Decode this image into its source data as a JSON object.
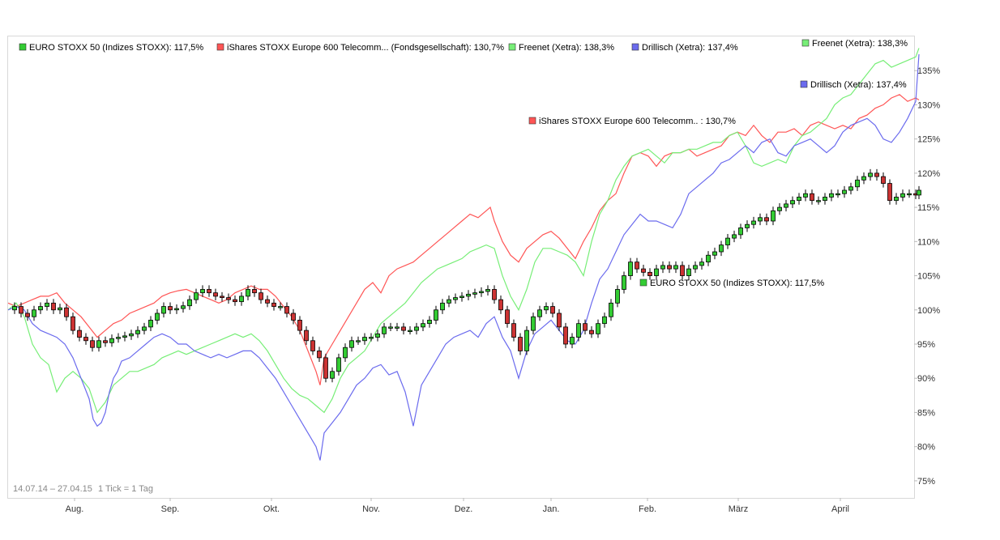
{
  "chart_data": {
    "type": "line",
    "date_range_label": "14.07.14 – 27.04.15",
    "tick_label": "1 Tick = 1 Tag",
    "x_axis_labels": [
      "Aug.",
      "Sep.",
      "Okt.",
      "Nov.",
      "Dez.",
      "Jan.",
      "Feb.",
      "März",
      "April"
    ],
    "y_axis_labels": [
      "135%",
      "130%",
      "125%",
      "120%",
      "115%",
      "110%",
      "105%",
      "100%",
      "95%",
      "90%",
      "85%",
      "80%",
      "75%"
    ],
    "y_ticks": [
      135,
      130,
      125,
      120,
      115,
      110,
      105,
      100,
      95,
      90,
      85,
      80,
      75
    ],
    "ylim": [
      72.5,
      140
    ],
    "grid": false,
    "legend_position": "top",
    "series": [
      {
        "name": "EURO STOXX 50 (Indizes STOXX)",
        "final_label": "117,5%",
        "legend_text": "EURO STOXX 50 (Indizes STOXX): 117,5%",
        "end_label": "EURO STOXX 50 (Indizes STOXX): 117,5%",
        "style": "candlestick",
        "color": "#33cc33",
        "down_color": "#cc3333",
        "x": [
          0,
          8,
          16,
          24,
          32,
          40,
          48,
          56,
          64,
          72,
          80,
          88,
          96,
          104,
          112,
          120,
          128,
          136,
          144,
          152,
          160,
          168,
          176,
          184,
          192,
          200,
          208,
          216,
          224,
          232,
          240,
          248,
          256,
          264,
          272,
          280,
          288,
          296,
          304,
          312,
          320,
          328,
          336,
          344,
          352,
          360,
          368,
          376,
          384,
          392,
          400,
          408,
          416,
          424,
          432,
          440,
          448,
          456,
          464,
          472,
          480,
          488,
          496,
          504,
          512,
          520,
          528,
          536,
          544,
          552,
          560,
          568,
          576,
          584,
          592,
          600,
          608,
          616,
          624,
          632,
          640,
          648,
          656,
          664,
          672,
          680,
          688,
          696,
          704,
          712,
          720,
          728,
          736,
          744,
          752,
          760,
          768,
          776,
          784,
          792,
          800,
          808,
          816,
          824,
          832,
          840,
          848,
          856,
          864,
          872,
          880,
          888,
          896,
          904,
          912,
          920,
          928,
          936,
          944,
          952,
          960,
          968,
          976,
          984,
          992,
          1000,
          1008,
          1016,
          1024,
          1032,
          1040,
          1048,
          1056,
          1064,
          1072,
          1080,
          1088,
          1096,
          1104,
          1112,
          1120,
          1124
        ],
        "y": [
          100,
          100.5,
          99.5,
          99,
          100,
          100.5,
          101,
          100,
          100.3,
          99,
          97,
          96,
          95.5,
          94.5,
          95.5,
          95.2,
          95.8,
          96,
          96.2,
          96.5,
          97,
          97.5,
          98.5,
          99.5,
          100.5,
          100,
          100.2,
          100.6,
          101.5,
          102.5,
          103,
          102.5,
          102,
          101.8,
          101.5,
          101.2,
          102,
          103,
          102.5,
          101.5,
          101,
          100.5,
          100.5,
          99.5,
          98.5,
          97,
          95.5,
          94,
          93,
          90,
          91,
          93,
          94.5,
          95.5,
          95.5,
          96,
          96,
          96.5,
          97.5,
          97.5,
          97.5,
          97,
          97,
          97.5,
          98,
          98.5,
          100,
          101,
          101.5,
          101.8,
          102,
          102.3,
          102.5,
          102.7,
          103,
          101.5,
          100,
          98,
          96,
          94,
          97,
          99,
          100,
          100.5,
          99.5,
          97.5,
          95,
          96,
          98,
          97,
          96.5,
          98,
          99,
          101,
          103,
          105,
          107,
          106,
          105.5,
          105,
          106,
          106.5,
          106,
          106.5,
          105,
          106,
          106.5,
          107,
          108,
          108.5,
          109.5,
          110.5,
          111,
          112,
          112.5,
          113,
          113.5,
          113,
          114.5,
          115,
          115.5,
          116,
          116.5,
          117,
          116,
          116,
          116.5,
          117,
          117,
          117.5,
          118,
          119,
          119.5,
          120,
          119.5,
          118.5,
          116,
          116.5,
          117,
          117,
          116.8,
          117.5
        ]
      },
      {
        "name": "iShares STOXX Europe 600 Telecomm... (Fondsgesellschaft)",
        "final_label": "130,7%",
        "legend_text": "iShares STOXX Europe 600 Telecomm... (Fondsgesellschaft): 130,7%",
        "end_label": "iShares STOXX Europe 600 Telecomm.. : 130,7%",
        "style": "line",
        "color": "#ff5555",
        "x": [
          0,
          10,
          20,
          30,
          40,
          50,
          60,
          70,
          80,
          90,
          100,
          110,
          120,
          130,
          140,
          150,
          160,
          170,
          180,
          190,
          200,
          210,
          220,
          230,
          240,
          250,
          260,
          270,
          280,
          290,
          300,
          310,
          320,
          330,
          340,
          350,
          360,
          370,
          380,
          385,
          390,
          400,
          410,
          420,
          430,
          440,
          450,
          460,
          470,
          480,
          490,
          500,
          510,
          520,
          530,
          540,
          550,
          560,
          570,
          580,
          590,
          595,
          600,
          610,
          620,
          630,
          640,
          650,
          660,
          670,
          680,
          690,
          700,
          710,
          720,
          730,
          740,
          750,
          760,
          770,
          780,
          790,
          800,
          810,
          820,
          830,
          840,
          850,
          860,
          870,
          880,
          890,
          900,
          910,
          920,
          930,
          940,
          950,
          960,
          970,
          980,
          990,
          1000,
          1010,
          1020,
          1030,
          1040,
          1050,
          1060,
          1070,
          1080,
          1090,
          1100,
          1110,
          1120,
          1124
        ],
        "y": [
          101,
          100.5,
          101,
          101.5,
          102,
          102,
          102.5,
          101,
          100,
          99,
          97.5,
          96,
          97,
          98,
          98.5,
          99.5,
          100,
          100.5,
          101,
          102,
          102.5,
          102.8,
          103,
          102.5,
          102,
          101.5,
          101,
          101.5,
          102.5,
          103,
          103.5,
          103,
          103,
          102,
          100.5,
          99,
          97,
          94,
          91,
          89,
          93,
          95,
          97,
          99,
          101,
          103,
          104,
          102.5,
          105,
          106,
          106.5,
          107,
          108,
          109,
          110,
          111,
          112,
          113,
          114,
          113.5,
          114.5,
          115,
          113,
          110,
          108,
          107,
          109,
          110,
          111,
          111.5,
          110.5,
          109,
          107.5,
          110,
          112,
          114.5,
          116,
          117,
          120,
          122.5,
          123,
          122.5,
          121,
          122.5,
          123,
          123,
          123.5,
          122.5,
          123,
          123.5,
          124,
          125.5,
          126,
          125.5,
          127,
          125.5,
          124.5,
          126,
          126,
          126.5,
          125.5,
          127,
          127.5,
          127,
          126.5,
          127,
          126.5,
          128,
          128.5,
          129.5,
          130,
          131,
          131.5,
          130.5,
          131,
          130.7
        ]
      },
      {
        "name": "Freenet (Xetra)",
        "final_label": "138,3%",
        "legend_text": "Freenet (Xetra): 138,3%",
        "end_label": "Freenet (Xetra): 138,3%",
        "style": "line",
        "color": "#77ee77",
        "x": [
          0,
          10,
          20,
          30,
          40,
          50,
          60,
          70,
          80,
          90,
          100,
          110,
          120,
          130,
          140,
          150,
          160,
          170,
          180,
          190,
          200,
          210,
          220,
          230,
          240,
          250,
          260,
          270,
          280,
          290,
          300,
          310,
          320,
          330,
          340,
          350,
          360,
          370,
          380,
          390,
          400,
          410,
          420,
          430,
          440,
          450,
          460,
          470,
          480,
          490,
          500,
          510,
          520,
          530,
          540,
          550,
          560,
          570,
          580,
          590,
          600,
          610,
          620,
          630,
          640,
          650,
          660,
          670,
          680,
          690,
          700,
          710,
          720,
          730,
          740,
          750,
          760,
          770,
          780,
          790,
          800,
          810,
          820,
          830,
          840,
          850,
          860,
          870,
          880,
          890,
          900,
          910,
          920,
          930,
          940,
          950,
          960,
          970,
          980,
          990,
          1000,
          1010,
          1020,
          1030,
          1040,
          1050,
          1060,
          1070,
          1080,
          1090,
          1100,
          1110,
          1120,
          1124
        ],
        "y": [
          100,
          101,
          99,
          95,
          93,
          92,
          88,
          90,
          91,
          90,
          88.5,
          85,
          86.5,
          89,
          90,
          91,
          91,
          91.5,
          92,
          93,
          93.5,
          94,
          93.5,
          94,
          94.5,
          95,
          95.5,
          96,
          96.5,
          96,
          96.5,
          95.5,
          94,
          92,
          90,
          88.5,
          87.5,
          87,
          86,
          85,
          87,
          90,
          92,
          93,
          94,
          96,
          98,
          99,
          100,
          101,
          102.5,
          104,
          105,
          106,
          106.5,
          107,
          107.5,
          108.5,
          109,
          109.5,
          109,
          105,
          102,
          100,
          103,
          107,
          109,
          109,
          108.5,
          108,
          107,
          105,
          110,
          114,
          116,
          119,
          121,
          122.5,
          123,
          123.5,
          122.5,
          121.5,
          123,
          123,
          123.5,
          123.5,
          124,
          124.5,
          124.5,
          125.5,
          126,
          124,
          121.5,
          121,
          121.5,
          122,
          121.5,
          124,
          125.5,
          126,
          127,
          128,
          130,
          131,
          131.5,
          133,
          134.5,
          136,
          136.5,
          135.5,
          136,
          136.5,
          137,
          138.3
        ]
      },
      {
        "name": "Drillisch (Xetra)",
        "final_label": "137,4%",
        "legend_text": "Drillisch (Xetra): 137,4%",
        "end_label": "Drillisch (Xetra): 137,4%",
        "style": "line",
        "color": "#6b6bee",
        "x": [
          0,
          10,
          20,
          30,
          40,
          50,
          60,
          70,
          80,
          90,
          100,
          105,
          110,
          115,
          120,
          125,
          130,
          135,
          140,
          150,
          160,
          170,
          180,
          190,
          200,
          210,
          220,
          230,
          240,
          250,
          260,
          270,
          280,
          290,
          300,
          310,
          320,
          330,
          340,
          350,
          360,
          370,
          380,
          385,
          390,
          400,
          410,
          420,
          430,
          440,
          450,
          460,
          470,
          480,
          490,
          500,
          510,
          520,
          530,
          540,
          550,
          560,
          570,
          580,
          590,
          600,
          610,
          620,
          630,
          640,
          650,
          660,
          670,
          680,
          690,
          700,
          710,
          720,
          730,
          740,
          750,
          760,
          770,
          780,
          790,
          800,
          810,
          820,
          830,
          840,
          850,
          860,
          870,
          880,
          890,
          900,
          910,
          920,
          930,
          940,
          950,
          960,
          970,
          980,
          990,
          1000,
          1010,
          1020,
          1030,
          1040,
          1050,
          1060,
          1070,
          1080,
          1090,
          1100,
          1110,
          1120,
          1124
        ],
        "y": [
          100,
          100.5,
          100,
          98,
          97,
          96.5,
          96,
          95,
          93,
          90,
          87,
          84,
          83,
          83.5,
          85,
          88,
          90,
          91,
          92.5,
          93,
          94,
          95,
          96,
          96.5,
          96,
          95,
          95,
          94,
          93.5,
          93,
          93.5,
          93,
          93.5,
          94,
          94,
          93,
          91.5,
          90,
          88,
          86,
          84,
          82,
          80,
          78,
          82,
          83.5,
          85,
          87,
          89,
          90,
          91.5,
          92,
          90.5,
          91,
          88,
          83,
          89,
          91,
          93,
          95,
          96,
          96.5,
          97,
          96,
          98,
          99,
          96,
          94,
          90,
          94,
          96.5,
          97.5,
          98.5,
          97,
          95.5,
          95,
          97,
          101,
          104.5,
          106,
          108.5,
          111,
          112.5,
          114,
          113,
          113,
          112.5,
          112,
          114,
          117,
          118,
          119,
          120,
          121.5,
          122,
          123,
          124,
          123,
          124.5,
          125,
          123,
          122.5,
          124,
          124.5,
          125,
          124,
          123,
          124,
          126,
          127,
          127.5,
          128,
          127,
          125,
          124.5,
          126,
          128,
          130.5,
          137.4
        ]
      }
    ]
  }
}
